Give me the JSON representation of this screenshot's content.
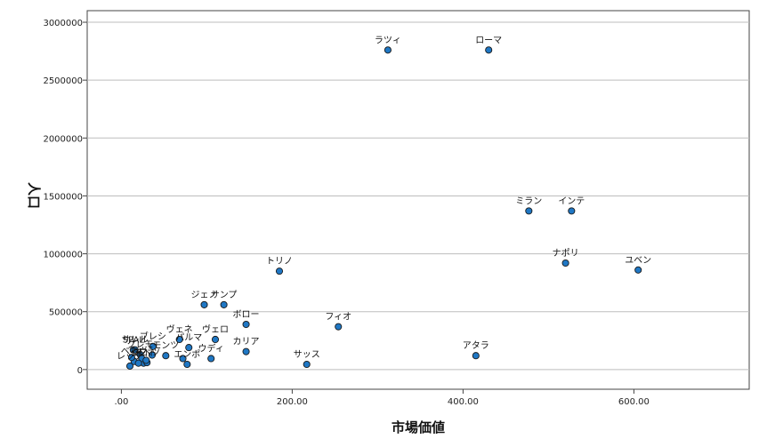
{
  "chart_data": {
    "type": "scatter",
    "xlabel": "市場価値",
    "ylabel": "人口",
    "xlim": [
      -40,
      735
    ],
    "ylim": [
      -170000,
      3100000
    ],
    "xticks": [
      ".00",
      "200.00",
      "400.00",
      "600.00"
    ],
    "xtick_values": [
      0,
      200,
      400,
      600
    ],
    "yticks": [
      "0",
      "500000",
      "1000000",
      "1500000",
      "2000000",
      "2500000",
      "3000000"
    ],
    "ytick_values": [
      0,
      500000,
      1000000,
      1500000,
      2000000,
      2500000,
      3000000
    ],
    "grid": "horizontal",
    "marker_color": "#1f77c4",
    "points": [
      {
        "label": "ラツィ",
        "x": 312,
        "y": 2760000
      },
      {
        "label": "ローマ",
        "x": 430,
        "y": 2760000
      },
      {
        "label": "ミラン",
        "x": 477,
        "y": 1370000
      },
      {
        "label": "インテ",
        "x": 527,
        "y": 1370000
      },
      {
        "label": "ナポリ",
        "x": 520,
        "y": 920000
      },
      {
        "label": "ユベン",
        "x": 605,
        "y": 860000
      },
      {
        "label": "トリノ",
        "x": 185,
        "y": 850000
      },
      {
        "label": "サンプ",
        "x": 120,
        "y": 560000
      },
      {
        "label": "ジェノ",
        "x": 97,
        "y": 560000
      },
      {
        "label": "ボロー",
        "x": 146,
        "y": 390000
      },
      {
        "label": "フィオ",
        "x": 254,
        "y": 370000
      },
      {
        "label": "ヴェロ",
        "x": 110,
        "y": 260000
      },
      {
        "label": "ヴェネ",
        "x": 68,
        "y": 260000
      },
      {
        "label": "ブレシ",
        "x": 37,
        "y": 200000
      },
      {
        "label": "パルマ",
        "x": 79,
        "y": 190000
      },
      {
        "label": "カリア",
        "x": 146,
        "y": 155000
      },
      {
        "label": "アタラ",
        "x": 415,
        "y": 120000
      },
      {
        "label": "サッス",
        "x": 217,
        "y": 45000
      },
      {
        "label": "ウディ",
        "x": 105,
        "y": 95000
      },
      {
        "label": "エンポ",
        "x": 77,
        "y": 45000
      },
      {
        "label": "モンツ",
        "x": 52,
        "y": 120000
      },
      {
        "label": "SPAL",
        "x": 14,
        "y": 170000
      },
      {
        "label": "サレル",
        "x": 16,
        "y": 170000
      },
      {
        "label": "クレモ",
        "x": 22,
        "y": 130000
      },
      {
        "label": "レッチ",
        "x": 10,
        "y": 30000
      },
      {
        "label": "ベネヴ",
        "x": 15,
        "y": 70000
      },
      {
        "label": "クロト",
        "x": 26,
        "y": 55000
      },
      {
        "label": "スペツ",
        "x": 30,
        "y": 60000
      },
      {
        "label": "",
        "x": 36,
        "y": 125000
      },
      {
        "label": "",
        "x": 72,
        "y": 95000
      },
      {
        "label": "",
        "x": 12,
        "y": 105000
      },
      {
        "label": "",
        "x": 24,
        "y": 95000
      },
      {
        "label": "",
        "x": 29,
        "y": 80000
      },
      {
        "label": "",
        "x": 20,
        "y": 55000
      }
    ]
  }
}
